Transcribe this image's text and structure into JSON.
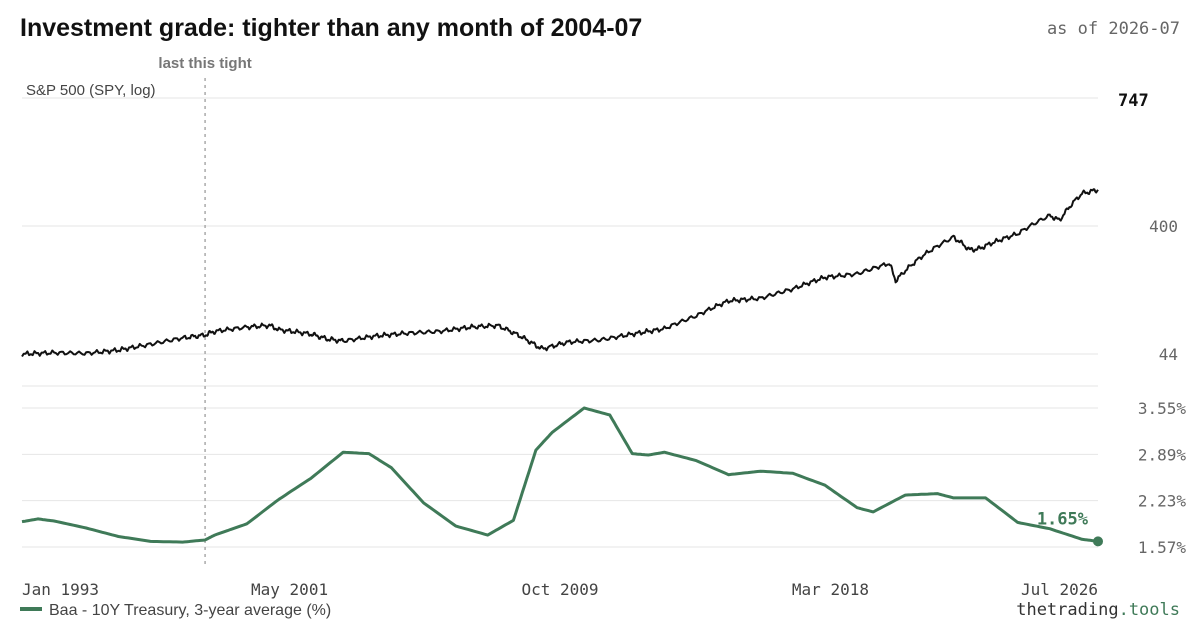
{
  "title": "Investment grade: tighter than any month of 2004-07",
  "as_of": "as of 2026-07",
  "brand_text": "thetrading",
  "brand_suffix": ".tools",
  "colors": {
    "sp500": "#111111",
    "spread": "#3f7a58",
    "marker_line": "#aaaaaa"
  },
  "chart_data": [
    {
      "type": "line",
      "label": "S&P 500 (SPY, log)",
      "scale": "log",
      "yticks": [
        44,
        400
      ],
      "ylim": [
        40,
        800
      ],
      "end_label": "747",
      "annotation": {
        "text": "last this tight",
        "x": 1998.7
      },
      "series": [
        {
          "x": [
            1993.0,
            1994.0,
            1995.0,
            1996.0,
            1997.0,
            1998.0,
            1998.7,
            1999.0,
            2000.0,
            2000.7,
            2001.0,
            2002.0,
            2002.5,
            2003.0,
            2004.0,
            2005.0,
            2006.0,
            2007.0,
            2007.8,
            2008.5,
            2009.0,
            2009.2,
            2010.0,
            2011.0,
            2012.0,
            2013.0,
            2014.0,
            2015.0,
            2016.0,
            2017.0,
            2018.0,
            2019.0,
            2020.0,
            2020.2,
            2021.0,
            2022.0,
            2022.5,
            2022.8,
            2023.0,
            2024.0,
            2025.0,
            2025.3,
            2026.0,
            2026.5
          ],
          "y": [
            44,
            45,
            44.5,
            47,
            52,
            58,
            61,
            65,
            70,
            72,
            67,
            62,
            57,
            55,
            60,
            63,
            65,
            70,
            72,
            60,
            51,
            48,
            54,
            56,
            62,
            68,
            85,
            110,
            115,
            135,
            165,
            175,
            210,
            155,
            235,
            330,
            265,
            270,
            285,
            350,
            480,
            440,
            700,
            747
          ]
        }
      ]
    },
    {
      "type": "line",
      "yticks": [
        1.57,
        2.23,
        2.89,
        3.55
      ],
      "ytick_labels": [
        "1.57%",
        "2.23%",
        "2.89%",
        "3.55%"
      ],
      "ylim": [
        1.57,
        3.55
      ],
      "end_label": "1.65%",
      "legend": "Baa - 10Y Treasury, 3-year average (%)",
      "series": [
        {
          "name": "Baa - 10Y Treasury, 3-year average (%)",
          "x": [
            1993.0,
            1993.5,
            1994.0,
            1995.0,
            1996.0,
            1997.0,
            1998.0,
            1998.7,
            1999.0,
            2000.0,
            2001.0,
            2002.0,
            2003.0,
            2003.8,
            2004.5,
            2005.5,
            2006.5,
            2007.5,
            2008.3,
            2009.0,
            2009.5,
            2010.5,
            2011.3,
            2012.0,
            2012.5,
            2013.0,
            2014.0,
            2015.0,
            2016.0,
            2017.0,
            2018.0,
            2019.0,
            2019.5,
            2020.5,
            2021.5,
            2022.0,
            2023.0,
            2024.0,
            2025.0,
            2026.0,
            2026.5
          ],
          "y": [
            1.93,
            1.97,
            1.94,
            1.84,
            1.72,
            1.65,
            1.64,
            1.67,
            1.74,
            1.9,
            2.25,
            2.55,
            2.92,
            2.9,
            2.7,
            2.2,
            1.87,
            1.74,
            1.95,
            2.95,
            3.2,
            3.55,
            3.45,
            2.9,
            2.88,
            2.92,
            2.8,
            2.6,
            2.65,
            2.62,
            2.45,
            2.13,
            2.07,
            2.31,
            2.33,
            2.27,
            2.27,
            1.92,
            1.83,
            1.68,
            1.65
          ]
        }
      ]
    }
  ],
  "x_axis": {
    "ticks": [
      1993.0,
      2001.33,
      2009.75,
      2018.17,
      2026.5
    ],
    "tick_labels": [
      "Jan 1993",
      "May 2001",
      "Oct 2009",
      "Mar 2018",
      "Jul 2026"
    ]
  }
}
